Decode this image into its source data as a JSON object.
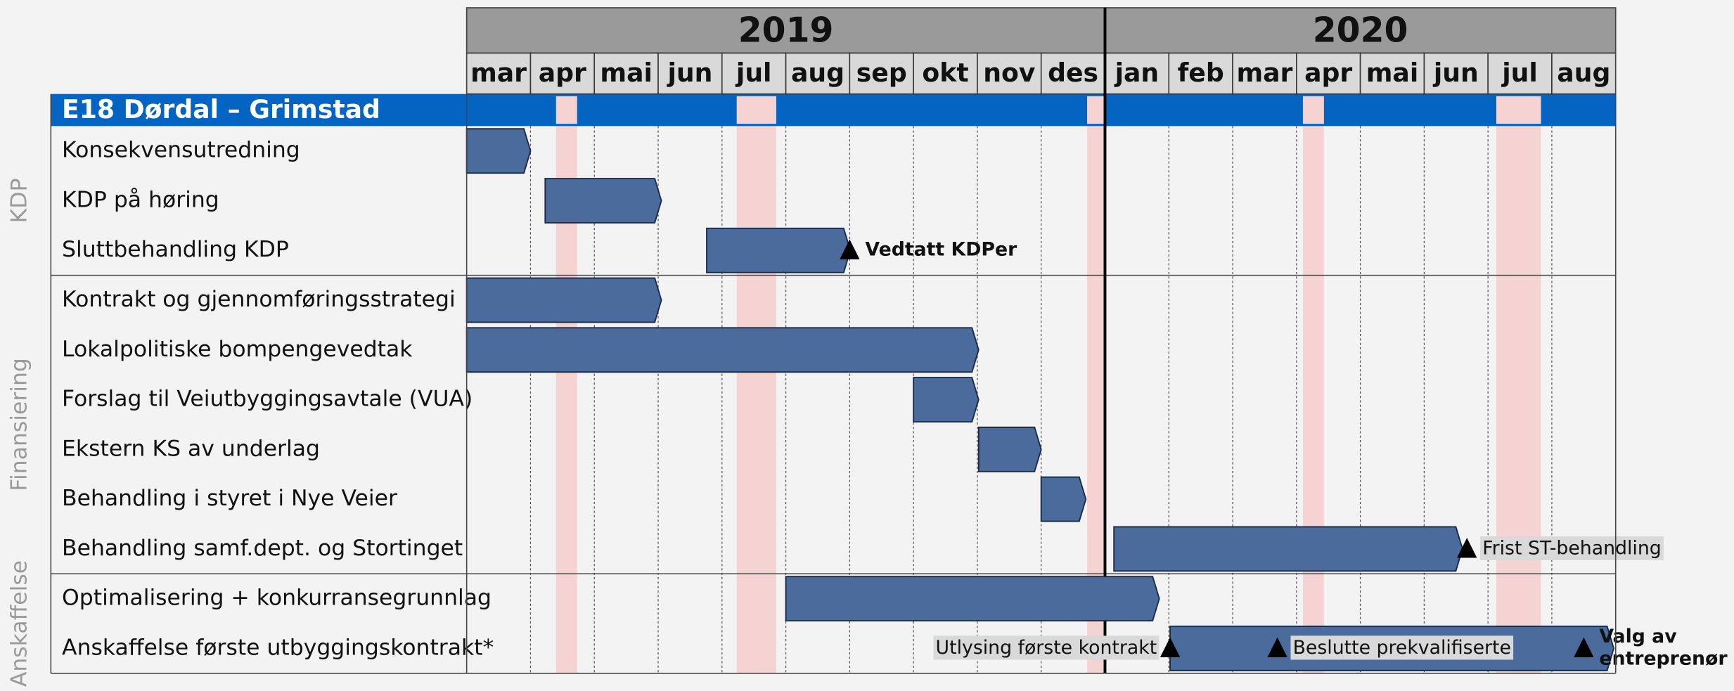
{
  "chart_data": {
    "type": "gantt",
    "title": "E18 Dørdal – Grimstad",
    "years": [
      {
        "label": "2019",
        "months": 10
      },
      {
        "label": "2020",
        "months": 8
      }
    ],
    "months": [
      "mar",
      "apr",
      "mai",
      "jun",
      "jul",
      "aug",
      "sep",
      "okt",
      "nov",
      "des",
      "jan",
      "feb",
      "mar",
      "apr",
      "mai",
      "jun",
      "jul",
      "aug"
    ],
    "groups": [
      {
        "label": "KDP",
        "rows": 3
      },
      {
        "label": "Finansiering",
        "rows": 6
      },
      {
        "label": "Anskaffelse",
        "rows": 2
      }
    ],
    "tasks": [
      {
        "name": "Konsekvensutredning",
        "start": 0,
        "end": 1.0
      },
      {
        "name": "KDP på høring",
        "start": 1.23,
        "end": 3.05
      },
      {
        "name": "Sluttbehandling KDP",
        "start": 3.76,
        "end": 6.01
      },
      {
        "name": "Kontrakt og gjennomføringsstrategi",
        "start": 0,
        "end": 3.05
      },
      {
        "name": "Lokalpolitiske bompengevedtak",
        "start": 0,
        "end": 8.02
      },
      {
        "name": "Forslag til Veiutbyggingsavtale (VUA)",
        "start": 7.0,
        "end": 8.02
      },
      {
        "name": "Ekstern KS av underlag",
        "start": 8.02,
        "end": 9.0
      },
      {
        "name": "Behandling i styret i Nye Veier",
        "start": 9.0,
        "end": 9.7
      },
      {
        "name": "Behandling samf.dept. og Stortinget",
        "start": 10.14,
        "end": 15.6
      },
      {
        "name": "Optimalisering + konkurransegrunnlag",
        "start": 5.0,
        "end": 10.85
      },
      {
        "name": "Anskaffelse første utbyggingskontrakt*",
        "start": 11.02,
        "end": 17.97
      }
    ],
    "milestones": [
      {
        "row": 2,
        "at": 6.0,
        "label": [
          "Vedtatt KDPer"
        ],
        "bold": true,
        "side": "right",
        "boxed": false
      },
      {
        "row": 8,
        "at": 15.67,
        "label": [
          "Frist ST-behandling"
        ],
        "bold": false,
        "side": "right",
        "boxed": true
      },
      {
        "row": 10,
        "at": 11.02,
        "label": [
          "Utlysing første kontrakt"
        ],
        "bold": false,
        "side": "left",
        "boxed": true
      },
      {
        "row": 10,
        "at": 12.7,
        "label": [
          "Beslutte prekvalifiserte"
        ],
        "bold": false,
        "side": "right",
        "boxed": true
      },
      {
        "row": 10,
        "at": 17.5,
        "label": [
          "Valg av",
          "entreprenør"
        ],
        "bold": true,
        "side": "right",
        "boxed": false
      }
    ],
    "holidays": [
      [
        1.4,
        1.73
      ],
      [
        4.23,
        4.85
      ],
      [
        9.72,
        10.0
      ],
      [
        13.1,
        13.43
      ],
      [
        16.13,
        16.83
      ]
    ],
    "colors": {
      "bar": "#4a6b9b",
      "header": "#9a9a9a",
      "months": "#d9d9d9",
      "project": "#0563c1",
      "holiday": "#f6d3d3"
    }
  }
}
